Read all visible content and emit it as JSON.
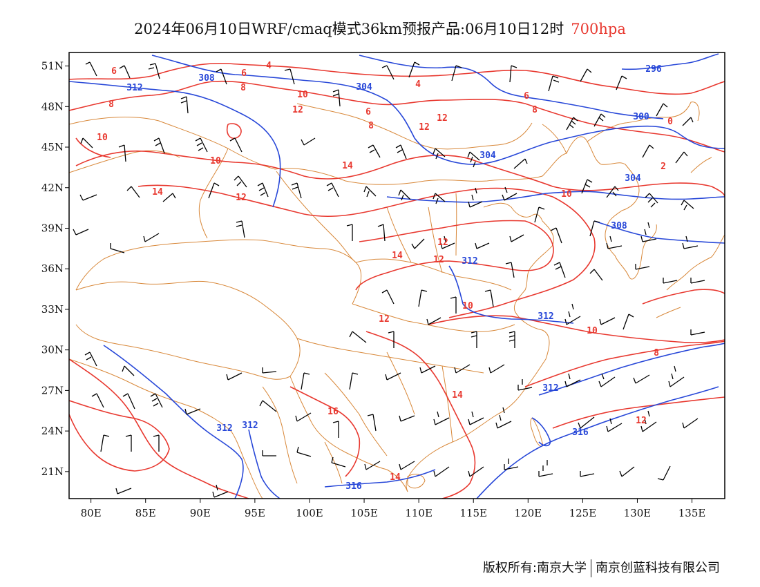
{
  "title": {
    "main": "2024年06月10日WRF/cmaq模式36km预报产品:06月10日12时",
    "level": "700hpa"
  },
  "footer": {
    "copyright": "版权所有:南京大学",
    "company": "南京创蓝科技有限公司"
  },
  "map": {
    "lon_range": [
      78,
      138
    ],
    "lat_range": [
      19,
      52
    ],
    "lon_ticks": [
      "80E",
      "85E",
      "90E",
      "95E",
      "100E",
      "105E",
      "110E",
      "115E",
      "120E",
      "125E",
      "130E",
      "135E"
    ],
    "lat_ticks": [
      "21N",
      "24N",
      "27N",
      "30N",
      "33N",
      "36N",
      "39N",
      "42N",
      "45N",
      "48N",
      "51N"
    ],
    "colors": {
      "height_contour": "#2747d8",
      "temperature_contour": "#e8382f",
      "boundary": "#d8883a",
      "wind_barb": "#000000",
      "frame": "#000000"
    },
    "height_labels": [
      "296",
      "300",
      "304",
      "304",
      "304",
      "308",
      "308",
      "312",
      "312",
      "312",
      "312",
      "312",
      "316"
    ],
    "temperature_labels": [
      "0",
      "2",
      "4",
      "4",
      "6",
      "6",
      "6",
      "6",
      "8",
      "8",
      "8",
      "8",
      "8",
      "10",
      "10",
      "10",
      "10",
      "10",
      "10",
      "12",
      "12",
      "12",
      "12",
      "12",
      "12",
      "12",
      "12",
      "14",
      "14",
      "14",
      "14",
      "14",
      "16"
    ]
  }
}
